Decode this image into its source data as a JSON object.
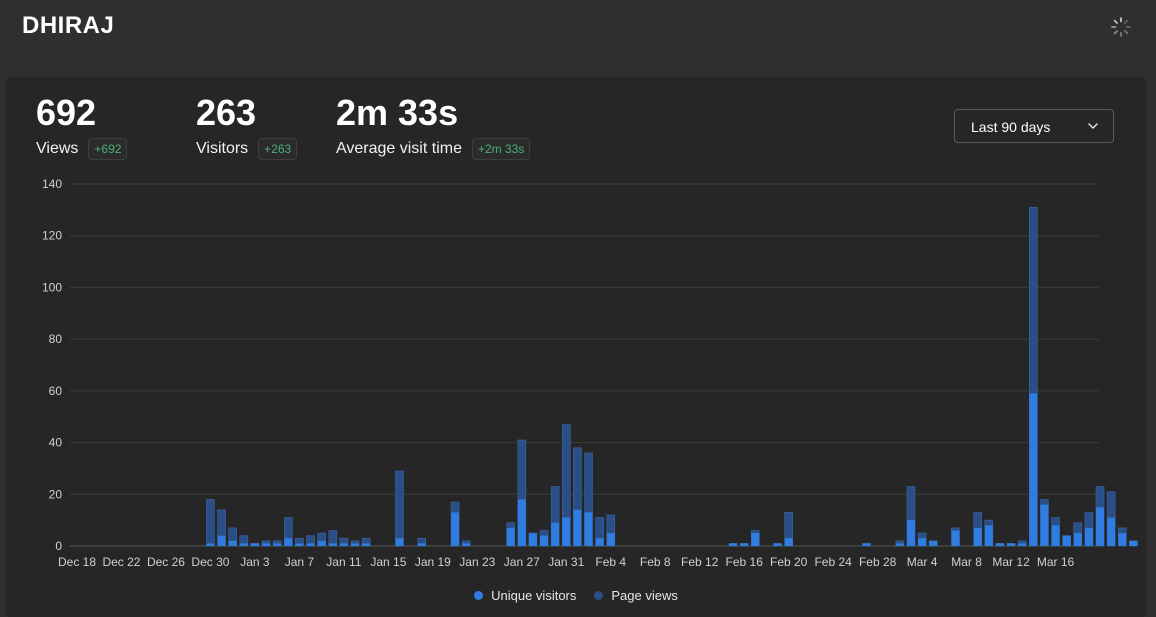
{
  "header": {
    "site_name": "DHIRAJ",
    "loading_icon": "spinner-icon"
  },
  "metrics": [
    {
      "label": "Views",
      "value": "692",
      "change": "+692"
    },
    {
      "label": "Visitors",
      "value": "263",
      "change": "+263"
    },
    {
      "label": "Average visit time",
      "value": "2m 33s",
      "change": "+2m 33s"
    }
  ],
  "date_range": {
    "selected": "Last 90 days",
    "icon": "chevron-down-icon"
  },
  "colors": {
    "visitors": "#2f7de1",
    "pageviews": "#2a4f86",
    "badge_text": "#4caf7a"
  },
  "chart_data": {
    "type": "bar",
    "title": "",
    "xlabel": "",
    "ylabel": "",
    "ylim": [
      0,
      140
    ],
    "yticks": [
      0,
      20,
      40,
      60,
      80,
      100,
      120,
      140
    ],
    "tick_labels": [
      "Dec 18",
      "Dec 22",
      "Dec 26",
      "Dec 30",
      "Jan 3",
      "Jan 7",
      "Jan 11",
      "Jan 15",
      "Jan 19",
      "Jan 23",
      "Jan 27",
      "Jan 31",
      "Feb 4",
      "Feb 8",
      "Feb 12",
      "Feb 16",
      "Feb 20",
      "Feb 24",
      "Feb 28",
      "Mar 4",
      "Mar 8",
      "Mar 12",
      "Mar 16"
    ],
    "start_label": "Dec 18",
    "series": [
      {
        "name": "Unique visitors",
        "values": [
          0,
          0,
          0,
          0,
          0,
          0,
          0,
          0,
          0,
          0,
          0,
          0,
          1,
          4,
          2,
          1,
          1,
          1,
          1,
          3,
          1,
          1,
          2,
          1,
          1,
          1,
          1,
          0,
          0,
          3,
          0,
          1,
          0,
          0,
          13,
          1,
          0,
          0,
          0,
          7,
          18,
          5,
          4,
          9,
          11,
          14,
          13,
          3,
          5,
          0,
          0,
          0,
          0,
          0,
          0,
          0,
          0,
          0,
          0,
          1,
          1,
          5,
          0,
          1,
          3,
          0,
          0,
          0,
          0,
          0,
          0,
          1,
          0,
          0,
          1,
          10,
          3,
          2,
          0,
          6,
          0,
          7,
          8,
          1,
          1,
          1,
          59,
          16,
          8,
          4,
          5,
          7,
          15,
          11,
          5,
          2
        ]
      },
      {
        "name": "Page views",
        "values": [
          0,
          0,
          0,
          0,
          0,
          0,
          0,
          0,
          0,
          0,
          0,
          0,
          18,
          14,
          7,
          4,
          1,
          2,
          2,
          11,
          3,
          4,
          5,
          6,
          3,
          2,
          3,
          0,
          0,
          29,
          0,
          3,
          0,
          0,
          17,
          2,
          0,
          0,
          0,
          9,
          41,
          5,
          6,
          23,
          47,
          38,
          36,
          11,
          12,
          0,
          0,
          0,
          0,
          0,
          0,
          0,
          0,
          0,
          0,
          1,
          1,
          6,
          0,
          1,
          13,
          0,
          0,
          0,
          0,
          0,
          0,
          1,
          0,
          0,
          2,
          23,
          5,
          2,
          0,
          7,
          0,
          13,
          10,
          1,
          1,
          2,
          131,
          18,
          11,
          4,
          9,
          13,
          23,
          21,
          7,
          2
        ]
      }
    ]
  }
}
